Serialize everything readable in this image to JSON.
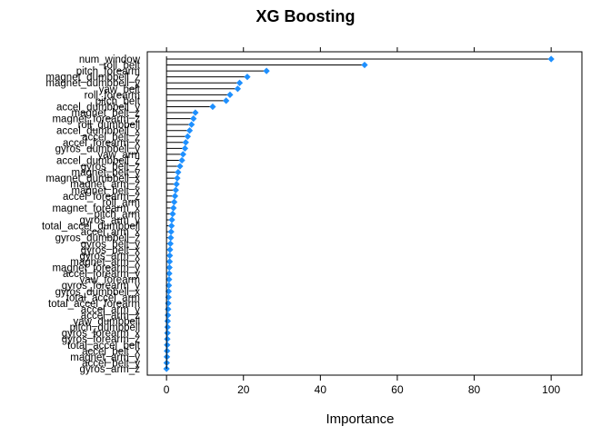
{
  "chart_data": {
    "type": "dotplot",
    "title": "XG Boosting",
    "xlabel": "Importance",
    "ylabel": "",
    "xlim": [
      -5,
      108
    ],
    "xticks": [
      0,
      20,
      40,
      60,
      80,
      100
    ],
    "grid": false,
    "point_color": "#1E90FF",
    "line_color": "#000000",
    "items": [
      {
        "label": "num_window",
        "value": 100
      },
      {
        "label": "roll_belt",
        "value": 51.5
      },
      {
        "label": "pitch_forearm",
        "value": 26
      },
      {
        "label": "magnet_dumbbell_z",
        "value": 21
      },
      {
        "label": "magnet_dumbbell_y",
        "value": 19
      },
      {
        "label": "yaw_belt",
        "value": 18.5
      },
      {
        "label": "roll_forearm",
        "value": 16.5
      },
      {
        "label": "pitch_belt",
        "value": 15.5
      },
      {
        "label": "accel_dumbbell_y",
        "value": 12
      },
      {
        "label": "magnet_belt_z",
        "value": 7.5
      },
      {
        "label": "magnet_forearm_z",
        "value": 7
      },
      {
        "label": "roll_dumbbell",
        "value": 6.5
      },
      {
        "label": "accel_dumbbell_x",
        "value": 6
      },
      {
        "label": "accel_belt_z",
        "value": 5.5
      },
      {
        "label": "accel_forearm_x",
        "value": 5
      },
      {
        "label": "gyros_dumbbell_y",
        "value": 4.8
      },
      {
        "label": "yaw_arm",
        "value": 4.3
      },
      {
        "label": "accel_dumbbell_z",
        "value": 4
      },
      {
        "label": "gyros_belt_z",
        "value": 3.5
      },
      {
        "label": "magnet_belt_y",
        "value": 3
      },
      {
        "label": "magnet_dumbbell_x",
        "value": 2.8
      },
      {
        "label": "magnet_arm_z",
        "value": 2.6
      },
      {
        "label": "magnet_belt_x",
        "value": 2.4
      },
      {
        "label": "accel_forearm_z",
        "value": 2.2
      },
      {
        "label": "roll_arm",
        "value": 2
      },
      {
        "label": "magnet_forearm_x",
        "value": 1.8
      },
      {
        "label": "pitch_arm",
        "value": 1.6
      },
      {
        "label": "gyros_arm_y",
        "value": 1.4
      },
      {
        "label": "total_accel_dumbbell",
        "value": 1.3
      },
      {
        "label": "accel_arm_x",
        "value": 1.2
      },
      {
        "label": "gyros_dumbbell_z",
        "value": 1.1
      },
      {
        "label": "gyros_belt_y",
        "value": 1
      },
      {
        "label": "gyros_belt_x",
        "value": 0.9
      },
      {
        "label": "gyros_arm_x",
        "value": 0.85
      },
      {
        "label": "magnet_arm_x",
        "value": 0.8
      },
      {
        "label": "magnet_forearm_y",
        "value": 0.75
      },
      {
        "label": "accel_forearm_y",
        "value": 0.7
      },
      {
        "label": "yaw_forearm",
        "value": 0.65
      },
      {
        "label": "gyros_forearm_y",
        "value": 0.6
      },
      {
        "label": "gyros_dumbbell_x",
        "value": 0.55
      },
      {
        "label": "total_accel_arm",
        "value": 0.5
      },
      {
        "label": "total_accel_forearm",
        "value": 0.45
      },
      {
        "label": "accel_arm_y",
        "value": 0.4
      },
      {
        "label": "accel_arm_z",
        "value": 0.35
      },
      {
        "label": "yaw_dumbbell",
        "value": 0.3
      },
      {
        "label": "pitch_dumbbell",
        "value": 0.27
      },
      {
        "label": "gyros_forearm_x",
        "value": 0.24
      },
      {
        "label": "gyros_forearm_z",
        "value": 0.2
      },
      {
        "label": "total_accel_belt",
        "value": 0.17
      },
      {
        "label": "accel_belt_x",
        "value": 0.14
      },
      {
        "label": "magnet_arm_y",
        "value": 0.1
      },
      {
        "label": "accel_belt_y",
        "value": 0.05
      },
      {
        "label": "gyros_arm_z",
        "value": 0
      }
    ]
  }
}
